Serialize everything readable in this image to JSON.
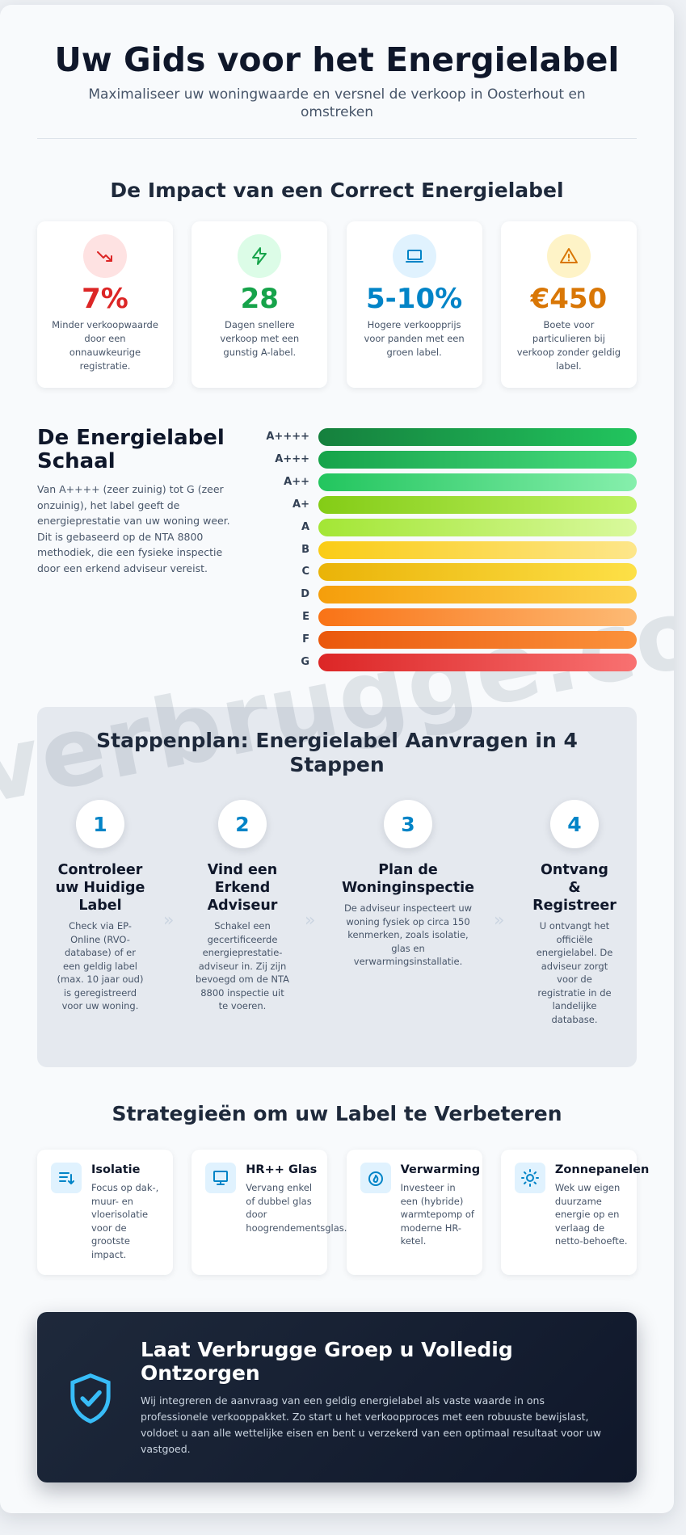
{
  "header": {
    "title": "Uw Gids voor het Energielabel",
    "subtitle": "Maximaliseer uw woningwaarde en versnel de verkoop in Oosterhout en omstreken"
  },
  "watermark": "verbrugge.com",
  "impact": {
    "title": "De Impact van een Correct Energielabel",
    "stats": [
      {
        "value": "7%",
        "text": "Minder verkoopwaarde door een onnauwkeurige registratie."
      },
      {
        "value": "28",
        "text": "Dagen snellere verkoop met een gunstig A-label."
      },
      {
        "value": "5-10%",
        "text": "Hogere verkoopprijs voor panden met een groen label."
      },
      {
        "value": "€450",
        "text": "Boete voor particulieren bij verkoop zonder geldig label."
      }
    ]
  },
  "scale": {
    "title": "De Energielabel Schaal",
    "text": "Van A++++ (zeer zuinig) tot G (zeer onzuinig), het label geeft de energieprestatie van uw woning weer. Dit is gebaseerd op de NTA 8800 methodiek, die een fysieke inspectie door een erkend adviseur vereist.",
    "labels": [
      "A++++",
      "A+++",
      "A++",
      "A+",
      "A",
      "B",
      "C",
      "D",
      "E",
      "F",
      "G"
    ]
  },
  "steps": {
    "title": "Stappenplan: Energielabel Aanvragen in 4 Stappen",
    "items": [
      {
        "number": 1,
        "title": "Controleer uw Huidige Label",
        "text": "Check via EP-Online (RVO-database) of er een geldig label (max. 10 jaar oud) is geregistreerd voor uw woning."
      },
      {
        "number": 2,
        "title": "Vind een Erkend Adviseur",
        "text": "Schakel een gecertificeerde energieprestatie-adviseur in. Zij zijn bevoegd om de NTA 8800 inspectie uit te voeren."
      },
      {
        "number": 3,
        "title": "Plan de Woninginspectie",
        "text": "De adviseur inspecteert uw woning fysiek op circa 150 kenmerken, zoals isolatie, glas en verwarmingsinstallatie."
      },
      {
        "number": 4,
        "title": "Ontvang & Registreer",
        "text": "U ontvangt het officiële energielabel. De adviseur zorgt voor de registratie in de landelijke database."
      }
    ]
  },
  "strategies": {
    "title": "Strategieën om uw Label te Verbeteren",
    "items": [
      {
        "title": "Isolatie",
        "text": "Focus op dak-, muur- en vloerisolatie voor de grootste impact."
      },
      {
        "title": "HR++ Glas",
        "text": "Vervang enkel of dubbel glas door hoogrendementsglas."
      },
      {
        "title": "Verwarming",
        "text": "Investeer in een (hybride) warmtepomp of moderne HR-ketel."
      },
      {
        "title": "Zonnepanelen",
        "text": "Wek uw eigen duurzame energie op en verlaag de netto-behoefte."
      }
    ]
  },
  "cta": {
    "title": "Laat Verbrugge Groep u Volledig Ontzorgen",
    "text": "Wij integreren de aanvraag van een geldig energielabel als vaste waarde in ons professionele verkooppakket. Zo start u het verkoopproces met een robuuste bewijslast, voldoet u aan alle wettelijke eisen en bent u verzekerd van een optimaal resultaat voor uw vastgoed."
  }
}
